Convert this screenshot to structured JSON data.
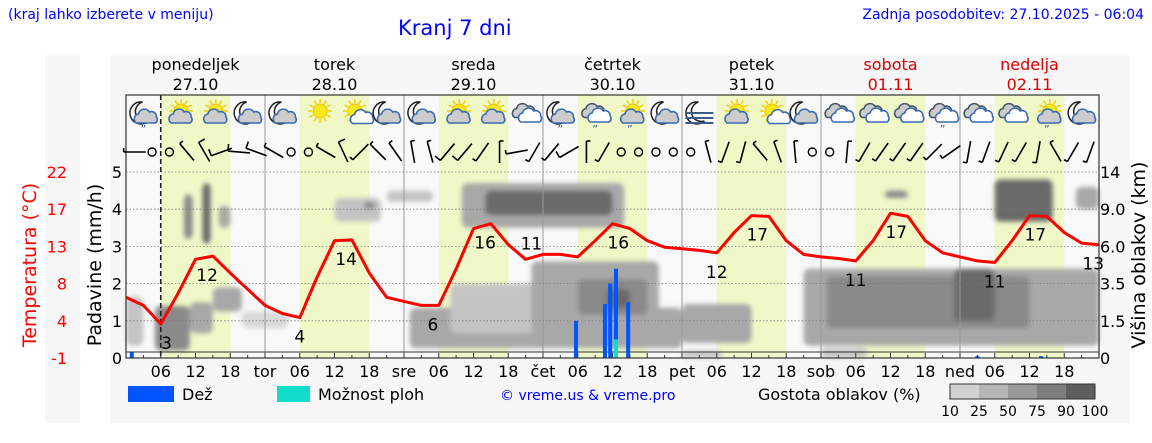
{
  "header": {
    "hint": "(kraj lahko izberete v meniju)",
    "title": "Kranj 7 dni",
    "updated": "Zadnja posodobitev: 27.10.2025 - 06:04"
  },
  "days": [
    {
      "name": "ponedeljek",
      "date": "27.10",
      "short": "",
      "weekend": false
    },
    {
      "name": "torek",
      "date": "28.10",
      "short": "tor",
      "weekend": false
    },
    {
      "name": "sreda",
      "date": "29.10",
      "short": "sre",
      "weekend": false
    },
    {
      "name": "četrtek",
      "date": "30.10",
      "short": "čet",
      "weekend": false
    },
    {
      "name": "petek",
      "date": "31.10",
      "short": "pet",
      "weekend": false
    },
    {
      "name": "sobota",
      "date": "01.11",
      "short": "sob",
      "weekend": true
    },
    {
      "name": "nedelja",
      "date": "02.11",
      "short": "ned",
      "weekend": true
    }
  ],
  "hour_ticks": [
    "06",
    "12",
    "18"
  ],
  "legend": {
    "rain": "Dež",
    "showers": "Možnost ploh",
    "copyright": "© vreme.us & vreme.pro",
    "cloud_density": "Gostota oblakov (%)",
    "density_levels": [
      "10",
      "25",
      "50",
      "75",
      "90",
      "100"
    ]
  },
  "colors": {
    "rain": "#0055ff",
    "showers": "#11ddcc",
    "temperature": "#ff0000",
    "daylight": "#f0f8c8",
    "header": "#0000ff",
    "weekend": "#dd0000"
  },
  "chart_data": {
    "type": "meteogram",
    "title": "Kranj 7 dni",
    "now_hour": 6,
    "axes": {
      "left_outer": {
        "label": "Temperatura (°C)",
        "ticks": [
          "-1",
          "4",
          "8",
          "13",
          "17",
          "22"
        ],
        "range": [
          -1,
          22.5
        ]
      },
      "left_inner": {
        "label": "Padavine (mm/h)",
        "ticks": [
          "0",
          "1",
          "2",
          "3",
          "4",
          "5"
        ],
        "range": [
          0,
          5.5
        ]
      },
      "right": {
        "label": "Višina oblakov (km)",
        "ticks": [
          "0",
          "1.5",
          "3.5",
          "6.0",
          "9.0",
          "14"
        ]
      }
    },
    "temperature": {
      "step_hours": 3,
      "values": [
        6.5,
        5.5,
        3.2,
        7,
        11.2,
        11.6,
        9.5,
        7.5,
        5.5,
        4.5,
        4,
        9,
        13.5,
        13.6,
        9.5,
        6.5,
        6,
        5.5,
        5.5,
        10,
        15,
        15.6,
        13,
        11.2,
        11.8,
        11.8,
        11.5,
        13.5,
        15.6,
        15,
        13.5,
        12.7,
        12.5,
        12.3,
        12,
        14.5,
        16.6,
        16.5,
        13.5,
        11.8,
        11.5,
        11.3,
        11,
        13.5,
        16.9,
        16.5,
        13.5,
        12,
        11.5,
        11,
        10.8,
        13.5,
        16.6,
        16.5,
        14.5,
        13.2,
        13
      ]
    },
    "temp_labels": [
      {
        "hour": 7,
        "value": "3",
        "kind": "min"
      },
      {
        "hour": 14,
        "value": "12",
        "kind": "max"
      },
      {
        "hour": 30,
        "value": "4",
        "kind": "min"
      },
      {
        "hour": 38,
        "value": "14",
        "kind": "max"
      },
      {
        "hour": 53,
        "value": "6",
        "kind": "min"
      },
      {
        "hour": 62,
        "value": "16",
        "kind": "max"
      },
      {
        "hour": 70,
        "value": "11",
        "kind": "min"
      },
      {
        "hour": 85,
        "value": "16",
        "kind": "max"
      },
      {
        "hour": 102,
        "value": "12",
        "kind": "min"
      },
      {
        "hour": 109,
        "value": "17",
        "kind": "max"
      },
      {
        "hour": 126,
        "value": "11",
        "kind": "min"
      },
      {
        "hour": 133,
        "value": "17",
        "kind": "max"
      },
      {
        "hour": 150,
        "value": "11",
        "kind": "min"
      },
      {
        "hour": 157,
        "value": "17",
        "kind": "max"
      },
      {
        "hour": 167,
        "value": "13",
        "kind": "min"
      }
    ],
    "rain": [
      {
        "hour": 1,
        "mm": 0.15,
        "showers": 0
      },
      {
        "hour": 77.7,
        "mm": 1.0,
        "showers": 0
      },
      {
        "hour": 82.7,
        "mm": 1.45,
        "showers": 0
      },
      {
        "hour": 83.6,
        "mm": 2.0,
        "showers": 0
      },
      {
        "hour": 84.6,
        "mm": 2.4,
        "showers": 0.5
      },
      {
        "hour": 86.7,
        "mm": 1.5,
        "showers": 0
      },
      {
        "hour": 147,
        "mm": 0.05,
        "showers": 0
      },
      {
        "hour": 158,
        "mm": 0.05,
        "showers": 0
      }
    ],
    "clouds": [
      {
        "h0": 0,
        "h1": 3,
        "km0": 0.5,
        "km1": 2.8,
        "density": 25
      },
      {
        "h0": 5,
        "h1": 11,
        "km0": 0.3,
        "km1": 2.3,
        "density": 75
      },
      {
        "h0": 11,
        "h1": 15,
        "km0": 1,
        "km1": 2.5,
        "density": 50
      },
      {
        "h0": 15,
        "h1": 20,
        "km0": 2,
        "km1": 3.3,
        "density": 50
      },
      {
        "h0": 10,
        "h1": 11.5,
        "km0": 6.6,
        "km1": 11,
        "density": 75
      },
      {
        "h0": 13.2,
        "h1": 14.6,
        "km0": 6.2,
        "km1": 12.5,
        "density": 90
      },
      {
        "h0": 16,
        "h1": 18,
        "km0": 7.5,
        "km1": 9.5,
        "density": 50
      },
      {
        "h0": 20,
        "h1": 28,
        "km0": 1.2,
        "km1": 2.0,
        "density": 10
      },
      {
        "h0": 36,
        "h1": 44,
        "km0": 8,
        "km1": 10.5,
        "density": 25
      },
      {
        "h0": 41,
        "h1": 43,
        "km0": 9,
        "km1": 10,
        "density": 75
      },
      {
        "h0": 45,
        "h1": 53,
        "km0": 10,
        "km1": 11.5,
        "density": 25
      },
      {
        "h0": 49,
        "h1": 96,
        "km0": 0.4,
        "km1": 2.2,
        "density": 50
      },
      {
        "h0": 56,
        "h1": 72,
        "km0": 1,
        "km1": 3.5,
        "density": 25
      },
      {
        "h0": 58,
        "h1": 86,
        "km0": 7.5,
        "km1": 12.5,
        "density": 50
      },
      {
        "h0": 62,
        "h1": 84,
        "km0": 8.5,
        "km1": 11.5,
        "density": 90
      },
      {
        "h0": 70,
        "h1": 92,
        "km0": 0.8,
        "km1": 5,
        "density": 50
      },
      {
        "h0": 78,
        "h1": 90,
        "km0": 1.8,
        "km1": 3.8,
        "density": 75
      },
      {
        "h0": 83,
        "h1": 87,
        "km0": 2.2,
        "km1": 3.2,
        "density": 90
      },
      {
        "h0": 96,
        "h1": 108,
        "km0": 0.6,
        "km1": 2.4,
        "density": 50
      },
      {
        "h0": 96,
        "h1": 103,
        "km0": 0,
        "km1": 0.3,
        "density": 25
      },
      {
        "h0": 117,
        "h1": 168,
        "km0": 0.5,
        "km1": 4.5,
        "density": 50
      },
      {
        "h0": 121,
        "h1": 156,
        "km0": 1.2,
        "km1": 4.0,
        "density": 75
      },
      {
        "h0": 143,
        "h1": 150,
        "km0": 1.5,
        "km1": 4.5,
        "density": 90
      },
      {
        "h0": 131,
        "h1": 135,
        "km0": 10.5,
        "km1": 11.5,
        "density": 75
      },
      {
        "h0": 150,
        "h1": 160,
        "km0": 8,
        "km1": 13,
        "density": 90
      },
      {
        "h0": 164,
        "h1": 168,
        "km0": 9,
        "km1": 12,
        "density": 50
      },
      {
        "h0": 120,
        "h1": 128,
        "km0": 0,
        "km1": 0.4,
        "density": 25
      }
    ],
    "icons": [
      "moon-cloud-rain",
      "sun-cloud",
      "sun-cloud",
      "moon-cloud",
      "moon-cloud",
      "sun",
      "sun-cloud-small",
      "moon-cloud",
      "moon-cloud",
      "sun-cloud",
      "sun-cloud",
      "cloudy",
      "moon-cloud-rain",
      "cloudy-rain",
      "sun-cloud-rain",
      "moon-cloud",
      "moon-fog",
      "sun-cloud",
      "sun-cloud-small",
      "moon-cloud",
      "cloudy",
      "cloudy",
      "cloudy",
      "cloudy-rain",
      "cloudy",
      "cloudy",
      "sun-cloud-rain",
      "moon-cloud"
    ],
    "wind": [
      {
        "dir": 270,
        "spd": 5
      },
      {
        "dir": 0,
        "spd": 0
      },
      {
        "dir": 0,
        "spd": 0
      },
      {
        "dir": 320,
        "spd": 5
      },
      {
        "dir": 330,
        "spd": 10
      },
      {
        "dir": 250,
        "spd": 10
      },
      {
        "dir": 275,
        "spd": 10
      },
      {
        "dir": 290,
        "spd": 10
      },
      {
        "dir": 300,
        "spd": 5
      },
      {
        "dir": 0,
        "spd": 0
      },
      {
        "dir": 0,
        "spd": 0
      },
      {
        "dir": 300,
        "spd": 5
      },
      {
        "dir": 335,
        "spd": 10
      },
      {
        "dir": 225,
        "spd": 5
      },
      {
        "dir": 315,
        "spd": 5
      },
      {
        "dir": 325,
        "spd": 5
      },
      {
        "dir": 350,
        "spd": 5
      },
      {
        "dir": 345,
        "spd": 5
      },
      {
        "dir": 220,
        "spd": 10
      },
      {
        "dir": 220,
        "spd": 10
      },
      {
        "dir": 215,
        "spd": 5
      },
      {
        "dir": 0,
        "spd": 5
      },
      {
        "dir": 260,
        "spd": 5
      },
      {
        "dir": 210,
        "spd": 5
      },
      {
        "dir": 220,
        "spd": 5
      },
      {
        "dir": 240,
        "spd": 10
      },
      {
        "dir": 0,
        "spd": 5
      },
      {
        "dir": 210,
        "spd": 5
      },
      {
        "dir": 0,
        "spd": 0
      },
      {
        "dir": 0,
        "spd": 0
      },
      {
        "dir": 0,
        "spd": 0
      },
      {
        "dir": 0,
        "spd": 0
      },
      {
        "dir": 0,
        "spd": 0
      },
      {
        "dir": 345,
        "spd": 5
      },
      {
        "dir": 200,
        "spd": 5
      },
      {
        "dir": 195,
        "spd": 5
      },
      {
        "dir": 320,
        "spd": 5
      },
      {
        "dir": 340,
        "spd": 5
      },
      {
        "dir": 355,
        "spd": 5
      },
      {
        "dir": 0,
        "spd": 0
      },
      {
        "dir": 0,
        "spd": 0
      },
      {
        "dir": 5,
        "spd": 5
      },
      {
        "dir": 210,
        "spd": 5
      },
      {
        "dir": 215,
        "spd": 5
      },
      {
        "dir": 215,
        "spd": 5
      },
      {
        "dir": 215,
        "spd": 5
      },
      {
        "dir": 225,
        "spd": 5
      },
      {
        "dir": 235,
        "spd": 5
      },
      {
        "dir": 190,
        "spd": 5
      },
      {
        "dir": 200,
        "spd": 5
      },
      {
        "dir": 205,
        "spd": 5
      },
      {
        "dir": 210,
        "spd": 5
      },
      {
        "dir": 190,
        "spd": 5
      },
      {
        "dir": 330,
        "spd": 5
      },
      {
        "dir": 210,
        "spd": 5
      },
      {
        "dir": 200,
        "spd": 5
      }
    ]
  }
}
